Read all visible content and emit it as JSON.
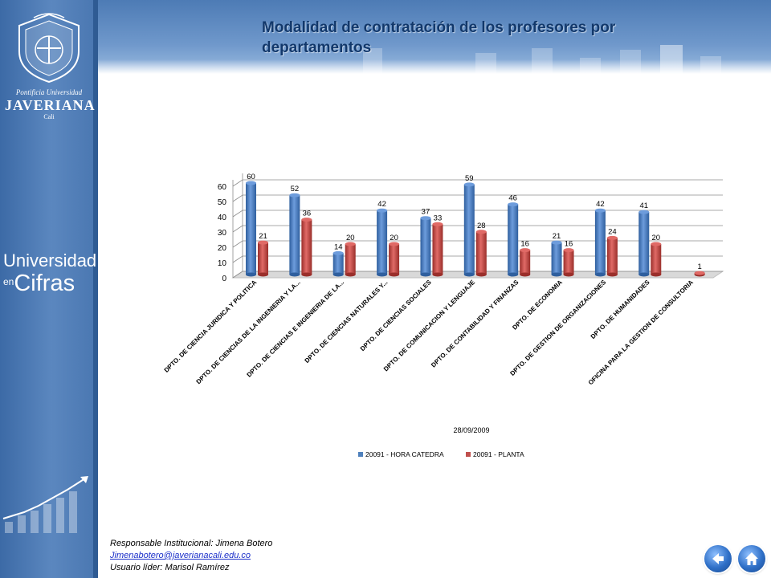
{
  "header": {
    "title": "Modalidad de contratación de los profesores por departamentos"
  },
  "sidebar": {
    "university": {
      "line1": "Pontificia Universidad",
      "line2": "JAVERIANA",
      "line3": "Cali"
    },
    "brand": {
      "word1": "Universidad",
      "word2": "en",
      "word3": "Cifras"
    }
  },
  "footer": {
    "responsible": "Responsable Institucional: Jimena Botero",
    "email": "Jimenabotero@javerianacali.edu.co",
    "leader": "Usuario líder: Marisol Ramírez"
  },
  "nav": {
    "back_icon": "back-arrow-icon",
    "home_icon": "home-icon"
  },
  "colors": {
    "series1": "#4f81bd",
    "series2": "#c0504d",
    "title": "#12386b"
  },
  "chart_data": {
    "type": "bar",
    "bar_style": "3d-cylinder",
    "date_label": "28/09/2009",
    "categories": [
      "DPTO. DE CIENCIA JURIDICA Y POLITICA",
      "DPTO. DE CIENCIAS DE LA INGENIERIA Y LA...",
      "DPTO. DE CIENCIAS E INGENIERIA DE LA...",
      "DPTO. DE CIENCIAS NATURALES Y...",
      "DPTO. DE CIENCIAS SOCIALES",
      "DPTO. DE COMUNICACION Y LENGUAJE",
      "DPTO. DE CONTABILIDAD Y FINANZAS",
      "DPTO. DE ECONOMIA",
      "DPTO. DE GESTION DE ORGANIZACIONES",
      "DPTO. DE HUMANIDADES",
      "OFICINA PARA LA GESTION DE CONSULTORIA"
    ],
    "series": [
      {
        "name": "20091 - HORA CATEDRA",
        "values": [
          60,
          52,
          14,
          42,
          37,
          59,
          46,
          21,
          42,
          41,
          null
        ],
        "color": "#4f81bd"
      },
      {
        "name": "20091 - PLANTA",
        "values": [
          21,
          36,
          20,
          20,
          33,
          28,
          16,
          16,
          24,
          20,
          1
        ],
        "color": "#c0504d"
      }
    ],
    "yticks": [
      0,
      10,
      20,
      30,
      40,
      50,
      60
    ],
    "ylim": [
      0,
      60
    ],
    "grid": true,
    "legend_position": "bottom"
  }
}
